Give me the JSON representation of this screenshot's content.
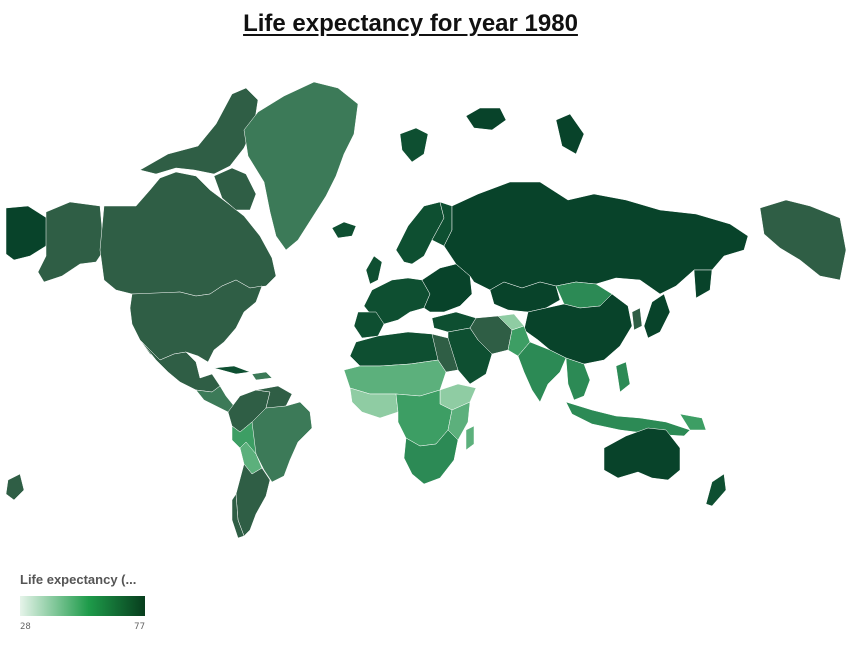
{
  "title": "Life expectancy for year 1980",
  "legend": {
    "title": "Life expectancy (...",
    "min": "28",
    "max": "77",
    "color_low": "#e6f4ea",
    "color_mid": "#1e9b4a",
    "color_high": "#073d1d"
  },
  "colors": {
    "very_dark": "#08432a",
    "dark": "#0e4f31",
    "medium_dark": "#2f5e45",
    "medium": "#3c7a58",
    "medium_light": "#2c8a55",
    "light": "#3d9e64",
    "lighter": "#5cb07c",
    "lightest": "#8fcca3",
    "border": "#ffffff"
  }
}
